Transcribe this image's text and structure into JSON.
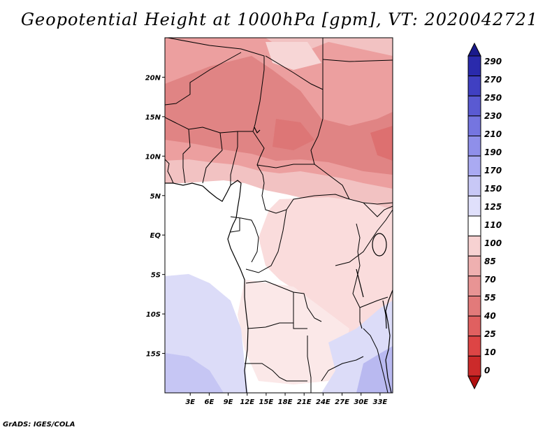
{
  "title": "Geopotential Height at 1000hPa [gpm], VT: 2020042721",
  "credit": "GrADS: IGES/COLA",
  "map": {
    "lon_range": [
      -1,
      35
    ],
    "lat_range": [
      -20,
      25
    ],
    "lat_ticks": [
      {
        "value": 20,
        "label": "20N"
      },
      {
        "value": 15,
        "label": "15N"
      },
      {
        "value": 10,
        "label": "10N"
      },
      {
        "value": 5,
        "label": "5N"
      },
      {
        "value": 0,
        "label": "EQ"
      },
      {
        "value": -5,
        "label": "5S"
      },
      {
        "value": -10,
        "label": "10S"
      },
      {
        "value": -15,
        "label": "15S"
      }
    ],
    "lon_ticks": [
      {
        "value": 3,
        "label": "3E"
      },
      {
        "value": 6,
        "label": "6E"
      },
      {
        "value": 9,
        "label": "9E"
      },
      {
        "value": 12,
        "label": "12E"
      },
      {
        "value": 15,
        "label": "15E"
      },
      {
        "value": 18,
        "label": "18E"
      },
      {
        "value": 21,
        "label": "21E"
      },
      {
        "value": 24,
        "label": "24E"
      },
      {
        "value": 27,
        "label": "27E"
      },
      {
        "value": 30,
        "label": "30E"
      },
      {
        "value": 33,
        "label": "33E"
      }
    ]
  },
  "colorbar": {
    "levels": [
      "0",
      "10",
      "25",
      "40",
      "55",
      "70",
      "85",
      "100",
      "110",
      "125",
      "150",
      "170",
      "190",
      "210",
      "230",
      "250",
      "270",
      "290"
    ],
    "colors": [
      "#b01010",
      "#cc2a2a",
      "#dd4545",
      "#e06060",
      "#e27a7a",
      "#e89494",
      "#efb0b0",
      "#f7d2d2",
      "#ffffff",
      "#e0e0fb",
      "#c8c8f6",
      "#aaaaf2",
      "#8f8fea",
      "#7575e0",
      "#5a5ad2",
      "#4040c2",
      "#2a2aac",
      "#1a1a8c"
    ]
  }
}
